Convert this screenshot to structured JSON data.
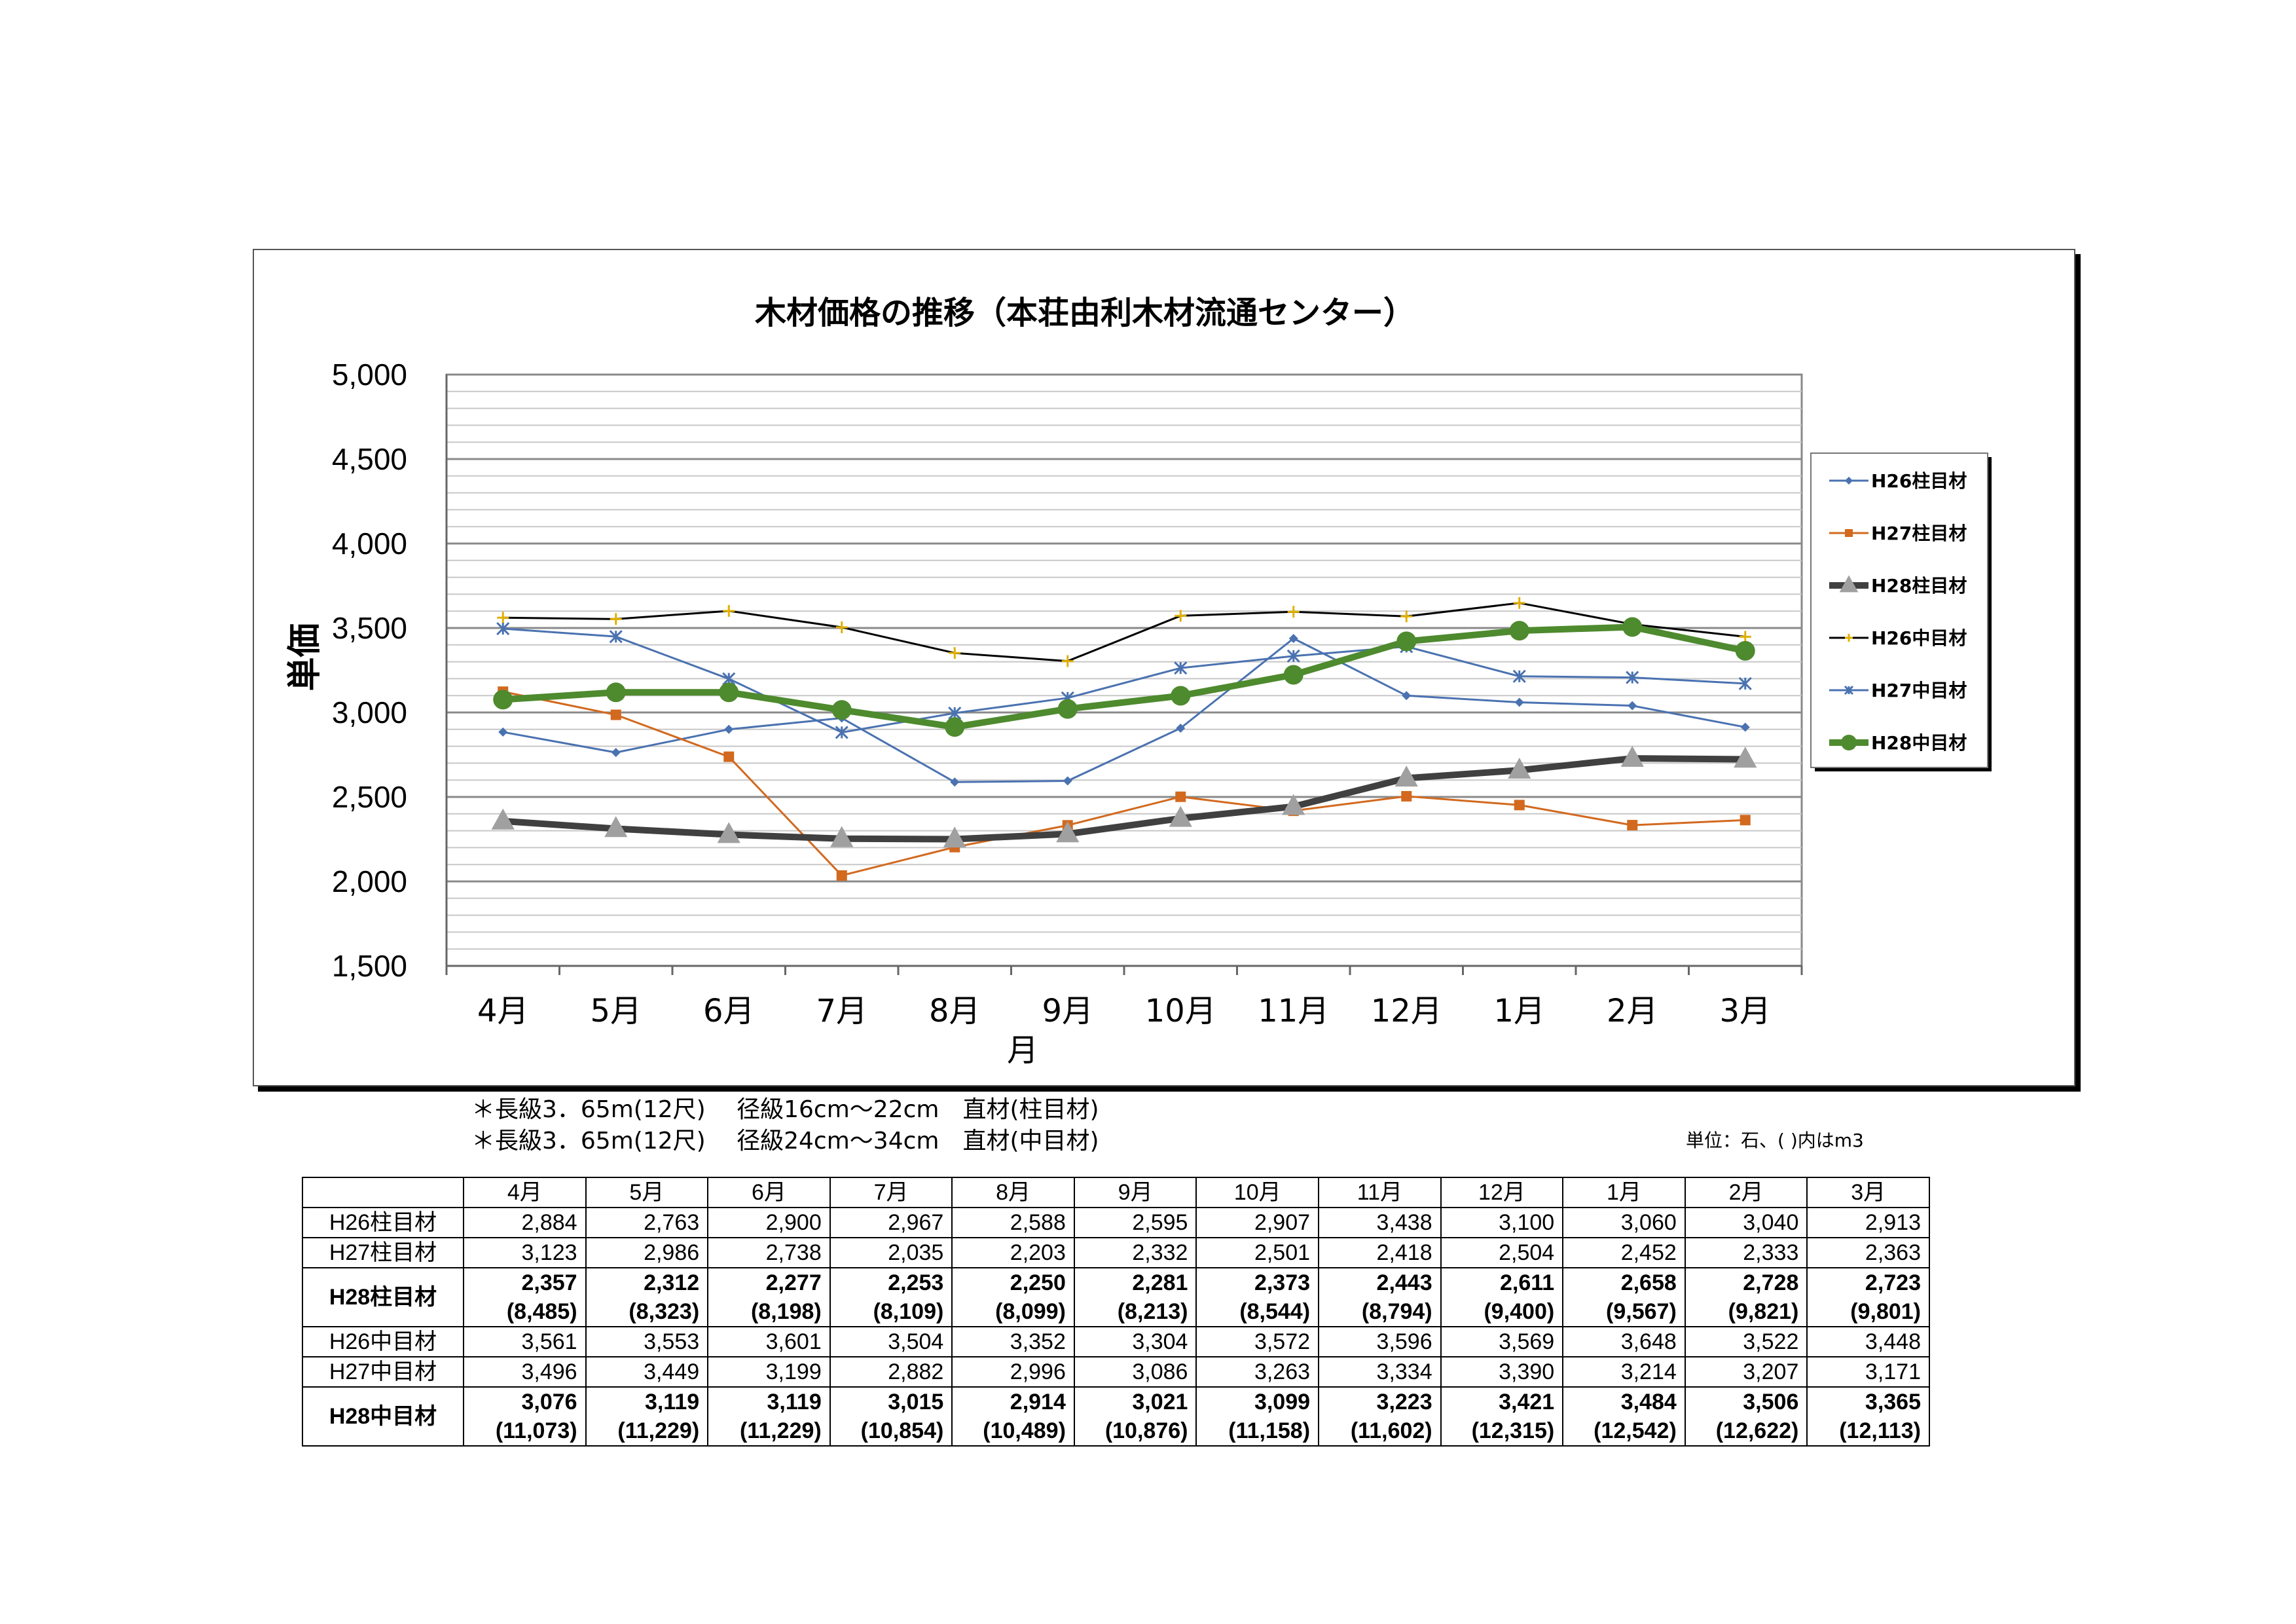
{
  "chart_data": {
    "type": "line",
    "title": "木材価格の推移（本荘由利木材流通センター）",
    "xlabel": "月",
    "ylabel": "単価",
    "ylim": [
      1500,
      5000
    ],
    "yticks": [
      "1,500",
      "2,000",
      "2,500",
      "3,000",
      "3,500",
      "4,000",
      "4,500",
      "5,000"
    ],
    "categories": [
      "4月",
      "5月",
      "6月",
      "7月",
      "8月",
      "9月",
      "10月",
      "11月",
      "12月",
      "1月",
      "2月",
      "3月"
    ],
    "legend_position": "right",
    "grid": true,
    "series": [
      {
        "name": "H26柱目材",
        "values": [
          2884,
          2763,
          2900,
          2967,
          2588,
          2595,
          2907,
          3438,
          3100,
          3060,
          3040,
          2913
        ],
        "color": "#4a72b0",
        "marker": "diamond",
        "width": 3
      },
      {
        "name": "H27柱目材",
        "values": [
          3123,
          2986,
          2738,
          2035,
          2203,
          2332,
          2501,
          2418,
          2504,
          2452,
          2333,
          2363
        ],
        "color": "#d2691e",
        "marker": "square",
        "width": 3
      },
      {
        "name": "H28柱目材",
        "values": [
          2357,
          2312,
          2277,
          2253,
          2250,
          2281,
          2373,
          2443,
          2611,
          2658,
          2728,
          2723
        ],
        "color": "#404040",
        "marker": "triangle",
        "width": 10
      },
      {
        "name": "H26中目材",
        "values": [
          3561,
          3553,
          3601,
          3504,
          3352,
          3304,
          3572,
          3596,
          3569,
          3648,
          3522,
          3448
        ],
        "color": "#000000",
        "marker": "plus",
        "width": 3
      },
      {
        "name": "H27中目材",
        "values": [
          3496,
          3449,
          3199,
          2882,
          2996,
          3086,
          3263,
          3334,
          3390,
          3214,
          3207,
          3171
        ],
        "color": "#4a72b0",
        "marker": "star",
        "width": 3
      },
      {
        "name": "H28中目材",
        "values": [
          3076,
          3119,
          3119,
          3015,
          2914,
          3021,
          3099,
          3223,
          3421,
          3484,
          3506,
          3365
        ],
        "color": "#4e8a2e",
        "marker": "circle",
        "width": 10
      }
    ]
  },
  "notes": {
    "line1": "＊長級3．65m(12尺)　 径級16cm～22cm　直材(柱目材)",
    "line2": "＊長級3．65m(12尺)　 径級24cm～34cm　直材(中目材)",
    "unit": "単位：石、( )内はm3"
  },
  "table": {
    "months": [
      "4月",
      "5月",
      "6月",
      "7月",
      "8月",
      "9月",
      "10月",
      "11月",
      "12月",
      "1月",
      "2月",
      "3月"
    ],
    "rows": [
      {
        "label": "H26柱目材",
        "values": [
          "2,884",
          "2,763",
          "2,900",
          "2,967",
          "2,588",
          "2,595",
          "2,907",
          "3,438",
          "3,100",
          "3,060",
          "3,040",
          "2,913"
        ],
        "bold": false
      },
      {
        "label": "H27柱目材",
        "values": [
          "3,123",
          "2,986",
          "2,738",
          "2,035",
          "2,203",
          "2,332",
          "2,501",
          "2,418",
          "2,504",
          "2,452",
          "2,333",
          "2,363"
        ],
        "bold": false
      },
      {
        "label": "H28柱目材",
        "values": [
          "2,357",
          "2,312",
          "2,277",
          "2,253",
          "2,250",
          "2,281",
          "2,373",
          "2,443",
          "2,611",
          "2,658",
          "2,728",
          "2,723"
        ],
        "m3": [
          "(8,485)",
          "(8,323)",
          "(8,198)",
          "(8,109)",
          "(8,099)",
          "(8,213)",
          "(8,544)",
          "(8,794)",
          "(9,400)",
          "(9,567)",
          "(9,821)",
          "(9,801)"
        ],
        "bold": true
      },
      {
        "label": "H26中目材",
        "values": [
          "3,561",
          "3,553",
          "3,601",
          "3,504",
          "3,352",
          "3,304",
          "3,572",
          "3,596",
          "3,569",
          "3,648",
          "3,522",
          "3,448"
        ],
        "bold": false
      },
      {
        "label": "H27中目材",
        "values": [
          "3,496",
          "3,449",
          "3,199",
          "2,882",
          "2,996",
          "3,086",
          "3,263",
          "3,334",
          "3,390",
          "3,214",
          "3,207",
          "3,171"
        ],
        "bold": false
      },
      {
        "label": "H28中目材",
        "values": [
          "3,076",
          "3,119",
          "3,119",
          "3,015",
          "2,914",
          "3,021",
          "3,099",
          "3,223",
          "3,421",
          "3,484",
          "3,506",
          "3,365"
        ],
        "m3": [
          "(11,073)",
          "(11,229)",
          "(11,229)",
          "(10,854)",
          "(10,489)",
          "(10,876)",
          "(11,158)",
          "(11,602)",
          "(12,315)",
          "(12,542)",
          "(12,622)",
          "(12,113)"
        ],
        "bold": true
      }
    ]
  }
}
